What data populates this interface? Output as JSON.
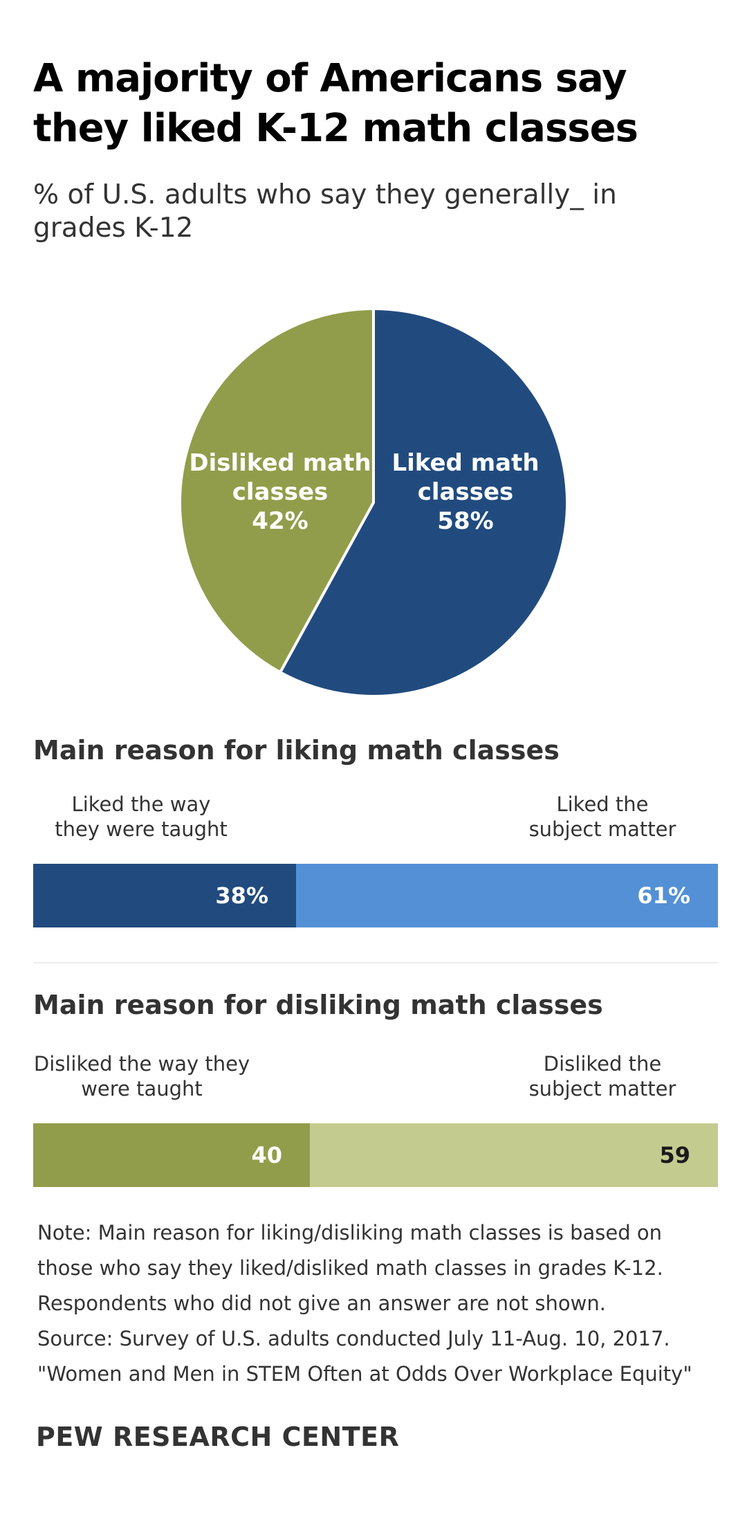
{
  "title": "A majority of Americans say they liked K-12 math classes",
  "subtitle": "% of U.S. adults who say they generally_ in grades K-12",
  "colors": {
    "liked_dark": "#214b7e",
    "liked_light": "#5490d6",
    "disliked_dark": "#929d4b",
    "disliked_light": "#c4cb8f"
  },
  "chart_data": [
    {
      "type": "pie",
      "slices": [
        {
          "label_lines": [
            "Liked math",
            "classes",
            "58%"
          ],
          "value": 58,
          "color": "#214b7e"
        },
        {
          "label_lines": [
            "Disliked math",
            "classes",
            "42%"
          ],
          "value": 42,
          "color": "#929d4b"
        }
      ]
    },
    {
      "type": "bar",
      "title": "Main reason for liking math classes",
      "categories": [
        "Liked the way they were taught",
        "Liked the subject matter"
      ],
      "category_lines": [
        [
          "Liked the way",
          "they were taught"
        ],
        [
          "Liked the",
          "subject matter"
        ]
      ],
      "values": [
        38,
        61
      ],
      "value_labels": [
        "38%",
        "61%"
      ],
      "colors": [
        "#214b7e",
        "#5490d6"
      ],
      "value_label_colors": [
        "#ffffff",
        "#ffffff"
      ]
    },
    {
      "type": "bar",
      "title": "Main reason for disliking math classes",
      "categories": [
        "Disliked the way they were taught",
        "Disliked the subject matter"
      ],
      "category_lines": [
        [
          "Disliked the way they",
          "were taught"
        ],
        [
          "Disliked the",
          "subject matter"
        ]
      ],
      "values": [
        40,
        59
      ],
      "value_labels": [
        "40",
        "59"
      ],
      "colors": [
        "#929d4b",
        "#c4cb8f"
      ],
      "value_label_colors": [
        "#ffffff",
        "#1a1a1a"
      ]
    }
  ],
  "note_lines": [
    "Note: Main reason for liking/disliking math classes is based on",
    "those who say they liked/disliked math classes in grades K-12.",
    "Respondents who did not give an answer are not shown.",
    "Source: Survey of U.S. adults conducted July 11-Aug. 10, 2017.",
    "\"Women and Men in STEM Often at Odds Over Workplace Equity\""
  ],
  "brand": "PEW RESEARCH CENTER"
}
